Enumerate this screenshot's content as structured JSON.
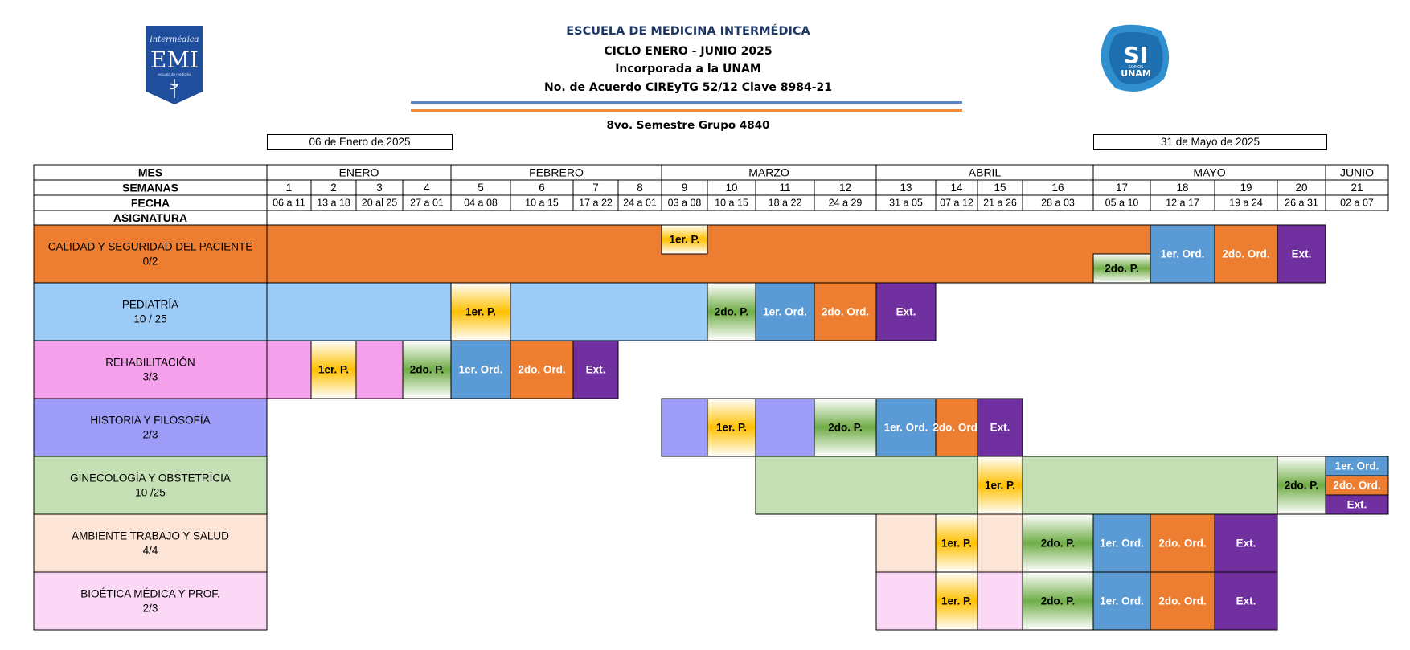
{
  "header": {
    "school": "ESCUELA DE  MEDICINA INTERMÉDICA",
    "cycle": "CICLO ENERO - JUNIO 2025",
    "incorporated": "Incorporada a la UNAM",
    "agreement": "No. de Acuerdo CIREyTG 52/12 Clave 8984-21",
    "group": "8vo.  Semestre  Grupo 4840",
    "start_date": "06 de Enero de 2025",
    "end_date": "31 de Mayo de 2025"
  },
  "logos": {
    "left": {
      "script": "intermédica",
      "initials": "EMI",
      "small": "escuela de medicina"
    },
    "right": {
      "big": "SI",
      "small": "SOMOS",
      "name": "UNAM"
    }
  },
  "labels": {
    "month": "MES",
    "weeks": "SEMANAS",
    "date": "FECHA",
    "subject": "ASIGNATURA"
  },
  "colors": {
    "orange": "#ed7d31",
    "lightblue": "#9dcbf8",
    "pink": "#f4a0ea",
    "lavender": "#9d9df8",
    "green": "#c4e0b4",
    "peach": "#fce4d6",
    "lightpink": "#fbd9f6",
    "blue": "#5b9bd5",
    "purple": "#7030a0",
    "yellow": "#ffc000"
  },
  "months": [
    {
      "name": "ENERO",
      "span": 4
    },
    {
      "name": "FEBRERO",
      "span": 4
    },
    {
      "name": "MARZO",
      "span": 4
    },
    {
      "name": "ABRIL",
      "span": 4
    },
    {
      "name": "MAYO",
      "span": 4
    },
    {
      "name": "JUNIO",
      "span": 1
    }
  ],
  "weeks": [
    "1",
    "2",
    "3",
    "4",
    "5",
    "6",
    "7",
    "8",
    "9",
    "10",
    "11",
    "12",
    "13",
    "14",
    "15",
    "16",
    "17",
    "18",
    "19",
    "20",
    "21"
  ],
  "dates": [
    "06 a 11",
    "13 a 18",
    "20 al 25",
    "27 a 01",
    "04 a 08",
    "10 a 15",
    "17 a 22",
    "24 a 01",
    "03 a 08",
    "10 a 15",
    "18 a 22",
    "24 a 29",
    "31 a 05",
    "07 a 12",
    "21 a 26",
    "28 a 03",
    "05 a 10",
    "12 a 17",
    "19 a 24",
    "26 a 31",
    "02 a 07"
  ],
  "subjects": [
    {
      "name": "CALIDAD Y SEGURIDAD DEL PACIENTE",
      "credits": "0/2",
      "color": "orange",
      "cells": [
        {
          "from": 1,
          "to": 20,
          "type": "fill",
          "color": "orange"
        },
        {
          "from": 9,
          "to": 9,
          "type": "top",
          "label": "1er. P.",
          "style": "yellow"
        },
        {
          "from": 17,
          "to": 17,
          "type": "bottom",
          "label": "2do. P.",
          "style": "green"
        },
        {
          "from": 18,
          "to": 18,
          "type": "full",
          "label": "1er. Ord.",
          "style": "blue"
        },
        {
          "from": 19,
          "to": 19,
          "type": "full",
          "label": "2do. Ord.",
          "style": "orange"
        },
        {
          "from": 20,
          "to": 20,
          "type": "full",
          "label": "Ext.",
          "style": "purple"
        }
      ]
    },
    {
      "name": "PEDIATRÍA",
      "credits": "10 / 25",
      "color": "lightblue",
      "cells": [
        {
          "from": 1,
          "to": 4,
          "type": "fill",
          "color": "lightblue"
        },
        {
          "from": 5,
          "to": 5,
          "type": "full",
          "label": "1er. P.",
          "style": "yellow"
        },
        {
          "from": 6,
          "to": 9,
          "type": "fill",
          "color": "lightblue"
        },
        {
          "from": 10,
          "to": 10,
          "type": "full",
          "label": "2do. P.",
          "style": "green"
        },
        {
          "from": 11,
          "to": 11,
          "type": "full",
          "label": "1er. Ord.",
          "style": "blue"
        },
        {
          "from": 12,
          "to": 12,
          "type": "full",
          "label": "2do. Ord.",
          "style": "orange"
        },
        {
          "from": 13,
          "to": 13,
          "type": "full",
          "label": "Ext.",
          "style": "purple"
        }
      ]
    },
    {
      "name": "REHABILITACIÓN",
      "credits": "3/3",
      "color": "pink",
      "cells": [
        {
          "from": 1,
          "to": 1,
          "type": "fill",
          "color": "pink"
        },
        {
          "from": 2,
          "to": 2,
          "type": "full",
          "label": "1er. P.",
          "style": "yellow"
        },
        {
          "from": 3,
          "to": 3,
          "type": "fill",
          "color": "pink"
        },
        {
          "from": 4,
          "to": 4,
          "type": "full",
          "label": "2do. P.",
          "style": "green"
        },
        {
          "from": 5,
          "to": 5,
          "type": "full",
          "label": "1er. Ord.",
          "style": "blue"
        },
        {
          "from": 6,
          "to": 6,
          "type": "full",
          "label": "2do. Ord.",
          "style": "orange"
        },
        {
          "from": 7,
          "to": 7,
          "type": "full",
          "label": "Ext.",
          "style": "purple"
        }
      ]
    },
    {
      "name": "HISTORIA Y FILOSOFÍA",
      "credits": "2/3",
      "color": "lavender",
      "cells": [
        {
          "from": 9,
          "to": 9,
          "type": "fill",
          "color": "lavender"
        },
        {
          "from": 10,
          "to": 10,
          "type": "full",
          "label": "1er. P.",
          "style": "yellow"
        },
        {
          "from": 11,
          "to": 11,
          "type": "fill",
          "color": "lavender"
        },
        {
          "from": 12,
          "to": 12,
          "type": "full",
          "label": "2do. P.",
          "style": "green"
        },
        {
          "from": 13,
          "to": 13,
          "type": "full",
          "label": "1er. Ord.",
          "style": "blue"
        },
        {
          "from": 14,
          "to": 14,
          "type": "full",
          "label": "2do. Ord.",
          "style": "orange"
        },
        {
          "from": 15,
          "to": 15,
          "type": "full",
          "label": "Ext.",
          "style": "purple"
        }
      ]
    },
    {
      "name": "GINECOLOGÍA Y OBSTETRÍCIA",
      "credits": "10 /25",
      "color": "green",
      "cells": [
        {
          "from": 11,
          "to": 14,
          "type": "fill",
          "color": "green"
        },
        {
          "from": 15,
          "to": 15,
          "type": "full",
          "label": "1er. P.",
          "style": "yellow"
        },
        {
          "from": 16,
          "to": 19,
          "type": "fill",
          "color": "green"
        },
        {
          "from": 20,
          "to": 20,
          "type": "full",
          "label": "2do. P.",
          "style": "green"
        },
        {
          "from": 21,
          "to": 21,
          "type": "third1",
          "label": "1er. Ord.",
          "style": "blue"
        },
        {
          "from": 21,
          "to": 21,
          "type": "third2",
          "label": "2do. Ord.",
          "style": "orange"
        },
        {
          "from": 21,
          "to": 21,
          "type": "third3",
          "label": "Ext.",
          "style": "purple"
        }
      ]
    },
    {
      "name": "AMBIENTE TRABAJO Y SALUD",
      "credits": "4/4",
      "color": "peach",
      "cells": [
        {
          "from": 13,
          "to": 13,
          "type": "fill",
          "color": "peach"
        },
        {
          "from": 14,
          "to": 14,
          "type": "full",
          "label": "1er. P.",
          "style": "yellow"
        },
        {
          "from": 15,
          "to": 15,
          "type": "fill",
          "color": "peach"
        },
        {
          "from": 16,
          "to": 16,
          "type": "full",
          "label": "2do. P.",
          "style": "green"
        },
        {
          "from": 17,
          "to": 17,
          "type": "full",
          "label": "1er. Ord.",
          "style": "blue"
        },
        {
          "from": 18,
          "to": 18,
          "type": "full",
          "label": "2do. Ord.",
          "style": "orange"
        },
        {
          "from": 19,
          "to": 19,
          "type": "full",
          "label": "Ext.",
          "style": "purple"
        }
      ]
    },
    {
      "name": "BIOÉTICA MÉDICA Y PROF.",
      "credits": "2/3",
      "color": "lightpink",
      "cells": [
        {
          "from": 13,
          "to": 13,
          "type": "fill",
          "color": "lightpink"
        },
        {
          "from": 14,
          "to": 14,
          "type": "full",
          "label": "1er. P.",
          "style": "yellow"
        },
        {
          "from": 15,
          "to": 15,
          "type": "fill",
          "color": "lightpink"
        },
        {
          "from": 16,
          "to": 16,
          "type": "full",
          "label": "2do. P.",
          "style": "green"
        },
        {
          "from": 17,
          "to": 17,
          "type": "full",
          "label": "1er. Ord.",
          "style": "blue"
        },
        {
          "from": 18,
          "to": 18,
          "type": "full",
          "label": "2do. Ord.",
          "style": "orange"
        },
        {
          "from": 19,
          "to": 19,
          "type": "full",
          "label": "Ext.",
          "style": "purple"
        }
      ]
    }
  ]
}
